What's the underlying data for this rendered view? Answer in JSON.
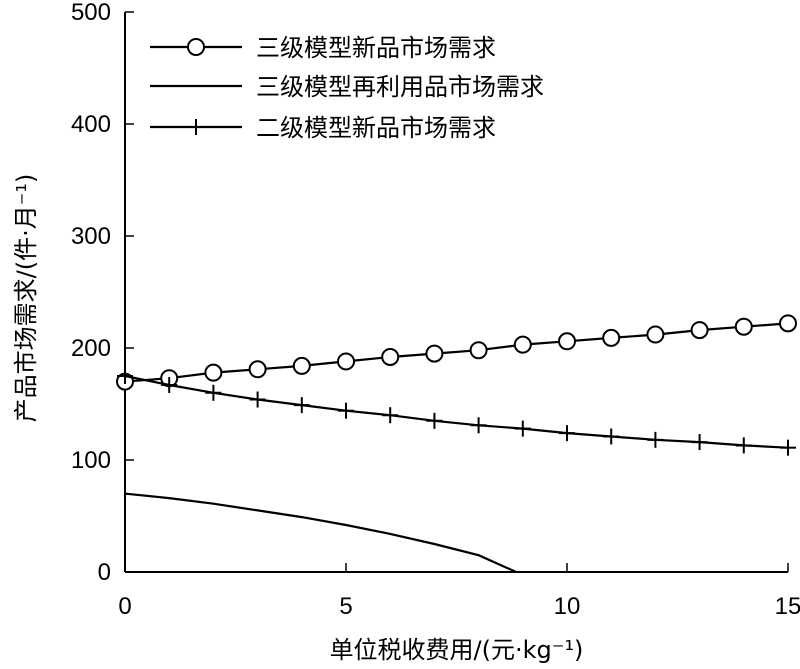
{
  "chart_data": {
    "type": "line",
    "xlabel": "单位税收费用/(元·kg⁻¹)",
    "ylabel": "产品市场需求/(件·月⁻¹)",
    "xlim": [
      0,
      15
    ],
    "ylim": [
      0,
      500
    ],
    "xticks": [
      0,
      5,
      10,
      15
    ],
    "yticks": [
      0,
      100,
      200,
      300,
      400,
      500
    ],
    "grid": false,
    "legend_position": "top-left",
    "series": [
      {
        "name": "三级模型新品市场需求",
        "marker": "circle",
        "x": [
          0,
          1,
          2,
          3,
          4,
          5,
          6,
          7,
          8,
          9,
          10,
          11,
          12,
          13,
          14,
          15
        ],
        "y": [
          170,
          173,
          178,
          181,
          184,
          188,
          192,
          195,
          198,
          203,
          206,
          209,
          212,
          216,
          219,
          222
        ]
      },
      {
        "name": "三级模型再利用品市场需求",
        "marker": "none",
        "x": [
          0,
          1,
          2,
          3,
          4,
          5,
          6,
          7,
          8,
          8.85
        ],
        "y": [
          70,
          66,
          61,
          55,
          49,
          42,
          34,
          25,
          15,
          0
        ]
      },
      {
        "name": "二级模型新品市场需求",
        "marker": "plus",
        "x": [
          0,
          1,
          2,
          3,
          4,
          5,
          6,
          7,
          8,
          9,
          10,
          11,
          12,
          13,
          14,
          15
        ],
        "y": [
          175,
          167,
          160,
          154,
          149,
          144,
          140,
          135,
          131,
          128,
          124,
          121,
          118,
          116,
          113,
          111
        ]
      }
    ]
  }
}
